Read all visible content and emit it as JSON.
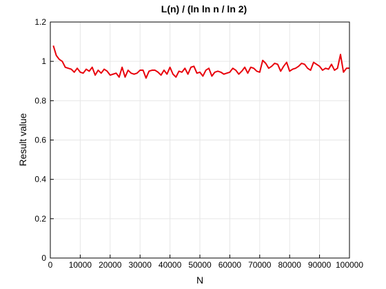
{
  "chart_data": {
    "type": "line",
    "title": "L(n) / (ln ln n / ln 2)",
    "xlabel": "N",
    "ylabel": "Result value",
    "xlim": [
      0,
      100000
    ],
    "ylim": [
      0,
      1.2
    ],
    "xticks": [
      0,
      10000,
      20000,
      30000,
      40000,
      50000,
      60000,
      70000,
      80000,
      90000,
      100000
    ],
    "yticks": [
      0,
      0.2,
      0.4,
      0.6,
      0.8,
      1,
      1.2
    ],
    "grid": true,
    "series": [
      {
        "color": "#e8000b",
        "x": [
          1000,
          2000,
          3000,
          4000,
          5000,
          6000,
          7000,
          8000,
          9000,
          10000,
          11000,
          12000,
          13000,
          14000,
          15000,
          16000,
          17000,
          18000,
          19000,
          20000,
          21000,
          22000,
          23000,
          24000,
          25000,
          26000,
          27000,
          28000,
          29000,
          30000,
          31000,
          32000,
          33000,
          34000,
          35000,
          36000,
          37000,
          38000,
          39000,
          40000,
          41000,
          42000,
          43000,
          44000,
          45000,
          46000,
          47000,
          48000,
          49000,
          50000,
          51000,
          52000,
          53000,
          54000,
          55000,
          56000,
          57000,
          58000,
          59000,
          60000,
          61000,
          62000,
          63000,
          64000,
          65000,
          66000,
          67000,
          68000,
          69000,
          70000,
          71000,
          72000,
          73000,
          74000,
          75000,
          76000,
          77000,
          78000,
          79000,
          80000,
          81000,
          82000,
          83000,
          84000,
          85000,
          86000,
          87000,
          88000,
          89000,
          90000,
          91000,
          92000,
          93000,
          94000,
          95000,
          96000,
          97000,
          98000,
          99000,
          100000
        ],
        "y": [
          1.08,
          1.03,
          1.01,
          1.0,
          0.97,
          0.965,
          0.96,
          0.945,
          0.965,
          0.945,
          0.94,
          0.96,
          0.95,
          0.97,
          0.93,
          0.955,
          0.94,
          0.96,
          0.95,
          0.93,
          0.935,
          0.94,
          0.92,
          0.97,
          0.92,
          0.955,
          0.94,
          0.935,
          0.94,
          0.955,
          0.955,
          0.915,
          0.95,
          0.955,
          0.955,
          0.945,
          0.93,
          0.955,
          0.935,
          0.97,
          0.935,
          0.92,
          0.95,
          0.945,
          0.965,
          0.935,
          0.97,
          0.975,
          0.94,
          0.945,
          0.925,
          0.955,
          0.965,
          0.925,
          0.945,
          0.95,
          0.945,
          0.935,
          0.94,
          0.945,
          0.965,
          0.955,
          0.935,
          0.95,
          0.97,
          0.94,
          0.97,
          0.965,
          0.95,
          0.945,
          1.005,
          0.99,
          0.965,
          0.975,
          0.99,
          0.985,
          0.95,
          0.975,
          0.995,
          0.95,
          0.96,
          0.965,
          0.975,
          0.99,
          0.985,
          0.965,
          0.955,
          0.995,
          0.985,
          0.975,
          0.955,
          0.965,
          0.96,
          0.985,
          0.955,
          0.965,
          1.035,
          0.945,
          0.965,
          0.965
        ]
      }
    ]
  }
}
